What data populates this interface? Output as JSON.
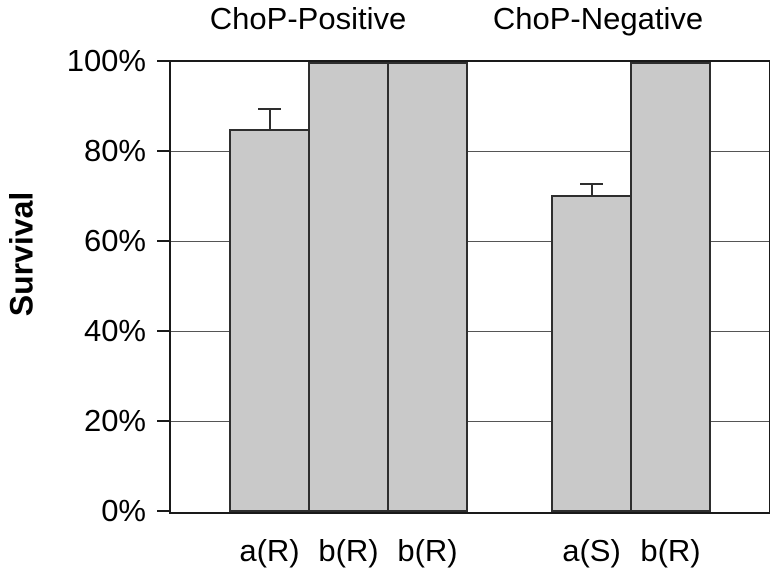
{
  "chart_data": {
    "type": "bar",
    "title": "",
    "ylabel": "Survival",
    "xlabel": "",
    "ylim": [
      0,
      100
    ],
    "yticks": [
      "0%",
      "20%",
      "40%",
      "60%",
      "80%",
      "100%"
    ],
    "grid": true,
    "legend": "none",
    "groups": [
      {
        "label": "ChoP-Positive",
        "bars": [
          {
            "category": "a(R)",
            "value": 85,
            "error_plus": 4.5
          },
          {
            "category": "b(R)",
            "value": 100,
            "error_plus": null
          },
          {
            "category": "b(R)",
            "value": 100,
            "error_plus": null
          }
        ]
      },
      {
        "label": "ChoP-Negative",
        "bars": [
          {
            "category": "a(S)",
            "value": 70.5,
            "error_plus": 2.5
          },
          {
            "category": "b(R)",
            "value": 100,
            "error_plus": null
          }
        ]
      }
    ],
    "colors": {
      "bar_fill": "#c9c9c9",
      "bar_border": "#2e2e2e",
      "axis": "#1a1a1a",
      "gridline": "#555555",
      "background": "#ffffff",
      "text": "#000000"
    }
  }
}
